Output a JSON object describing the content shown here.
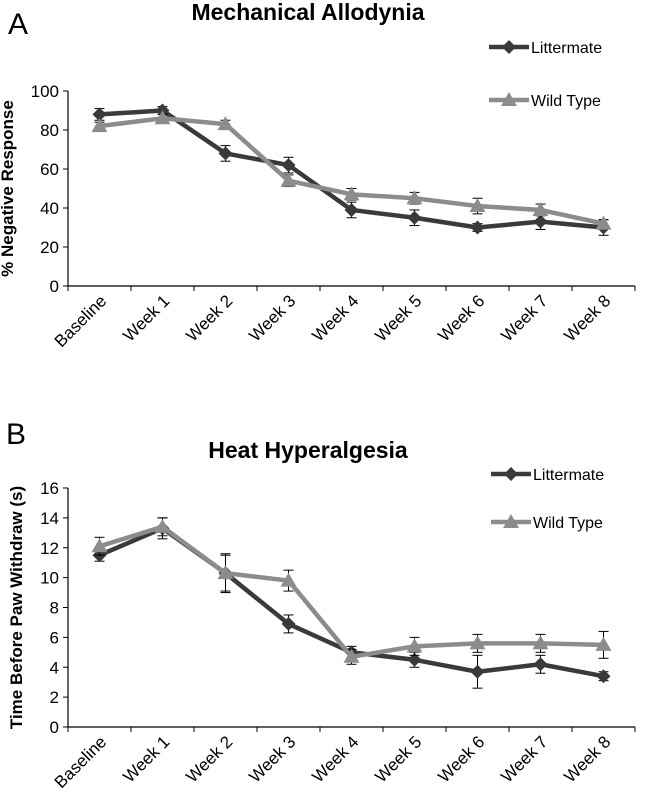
{
  "chart_data": [
    {
      "type": "line",
      "panel": "A",
      "title": "Mechanical Allodynia",
      "xlabel": "",
      "ylabel": "% Negative Response",
      "categories": [
        "Baseline",
        "Week 1",
        "Week 2",
        "Week 3",
        "Week 4",
        "Week 5",
        "Week 6",
        "Week 7",
        "Week 8"
      ],
      "ylim": [
        0,
        100
      ],
      "yticks": [
        "0",
        "20",
        "40",
        "60",
        "80",
        "100"
      ],
      "legend_position": "top-right",
      "grid": false,
      "series": [
        {
          "name": "Littermate",
          "marker": "diamond",
          "color": "#3a3a3a",
          "values": [
            88,
            90,
            68,
            62,
            39,
            35,
            30,
            33,
            30
          ],
          "errors": [
            3,
            2,
            4,
            4,
            4,
            4,
            2,
            4,
            4
          ]
        },
        {
          "name": "Wild Type",
          "marker": "triangle",
          "color": "#8c8c8c",
          "values": [
            82,
            86,
            83,
            54,
            47,
            45,
            41,
            39,
            32
          ],
          "errors": [
            2,
            2,
            2,
            3,
            3,
            3,
            4,
            3,
            2
          ]
        }
      ]
    },
    {
      "type": "line",
      "panel": "B",
      "title": "Heat Hyperalgesia",
      "xlabel": "",
      "ylabel": "Time Before Paw Withdraw (s)",
      "categories": [
        "Baseline",
        "Week 1",
        "Week 2",
        "Week 3",
        "Week 4",
        "Week 5",
        "Week 6",
        "Week 7",
        "Week 8"
      ],
      "ylim": [
        0,
        16
      ],
      "yticks": [
        "0",
        "2",
        "4",
        "6",
        "8",
        "10",
        "12",
        "14",
        "16"
      ],
      "legend_position": "top-right",
      "grid": false,
      "series": [
        {
          "name": "Littermate",
          "marker": "diamond",
          "color": "#3a3a3a",
          "values": [
            11.5,
            13.3,
            10.3,
            6.9,
            5.0,
            4.5,
            3.7,
            4.2,
            3.4
          ],
          "errors": [
            0.4,
            0.7,
            1.3,
            0.6,
            0.4,
            0.5,
            1.1,
            0.6,
            0.3
          ]
        },
        {
          "name": "Wild Type",
          "marker": "triangle",
          "color": "#8c8c8c",
          "values": [
            12.1,
            13.4,
            10.3,
            9.8,
            4.7,
            5.4,
            5.6,
            5.6,
            5.5
          ],
          "errors": [
            0.6,
            0.6,
            1.2,
            0.7,
            0.5,
            0.6,
            0.6,
            0.6,
            0.9
          ]
        }
      ]
    }
  ]
}
